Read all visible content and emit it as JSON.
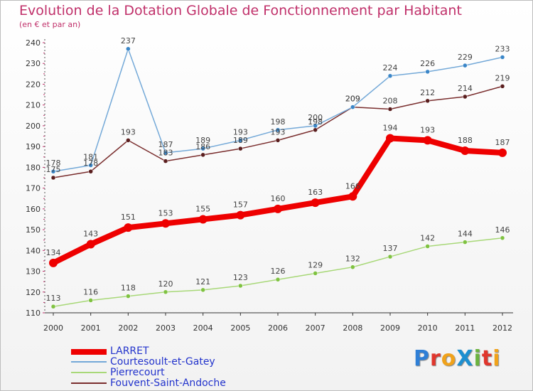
{
  "title": "Evolution de la Dotation Globale de Fonctionnement par Habitant",
  "subtitle": "(en € et par an)",
  "brand": {
    "text": "ProXiti",
    "letter_colors": [
      "#2f7fd6",
      "#e0362d",
      "#f0a21b",
      "#1c8fd0",
      "#6cb33f",
      "#e0362d",
      "#f0a21b"
    ]
  },
  "chart_data": {
    "type": "line",
    "x": [
      "2000",
      "2001",
      "2002",
      "2003",
      "2004",
      "2005",
      "2006",
      "2007",
      "2008",
      "2009",
      "2010",
      "2011",
      "2012"
    ],
    "ylim": [
      110,
      240
    ],
    "yticks": [
      110,
      120,
      130,
      140,
      150,
      160,
      170,
      180,
      190,
      200,
      210,
      220,
      230,
      240
    ],
    "grid": false,
    "legend_position": "bottom-left",
    "series": [
      {
        "name": "LARRET",
        "color": "#ee0000",
        "emphasis": true,
        "values": [
          134,
          143,
          151,
          153,
          155,
          157,
          160,
          163,
          166,
          194,
          193,
          188,
          187
        ],
        "labels": [
          "134",
          "143",
          "151",
          "153",
          "155",
          "157",
          "160",
          "163",
          "166",
          "194",
          "193",
          "188",
          "187"
        ]
      },
      {
        "name": "Courtesoult-et-Gatey",
        "color": "#74a9d8",
        "marker": "#3a86c8",
        "values": [
          178,
          181,
          237,
          187,
          189,
          193,
          198,
          200,
          209,
          224,
          226,
          229,
          233
        ],
        "labels": [
          "178",
          "181",
          "237",
          "187",
          "189",
          "193",
          "198",
          "200",
          "209",
          "224",
          "226",
          "229",
          "233"
        ]
      },
      {
        "name": "Pierrecourt",
        "color": "#a8d878",
        "marker": "#7fc241",
        "values": [
          113,
          116,
          118,
          120,
          121,
          123,
          126,
          129,
          132,
          137,
          142,
          144,
          146
        ],
        "labels": [
          "113",
          "116",
          "118",
          "120",
          "121",
          "123",
          "126",
          "129",
          "132",
          "137",
          "142",
          "144",
          "146"
        ]
      },
      {
        "name": "Fouvent-Saint-Andoche",
        "color": "#7a2e2e",
        "marker": "#5a1e1e",
        "values": [
          175,
          178,
          193,
          183,
          186,
          189,
          193,
          198,
          209,
          208,
          212,
          214,
          219
        ],
        "labels": [
          "175",
          "178",
          "193",
          "183",
          "186",
          "189",
          "193",
          "198",
          "209",
          "208",
          "212",
          "214",
          "219"
        ]
      }
    ]
  }
}
